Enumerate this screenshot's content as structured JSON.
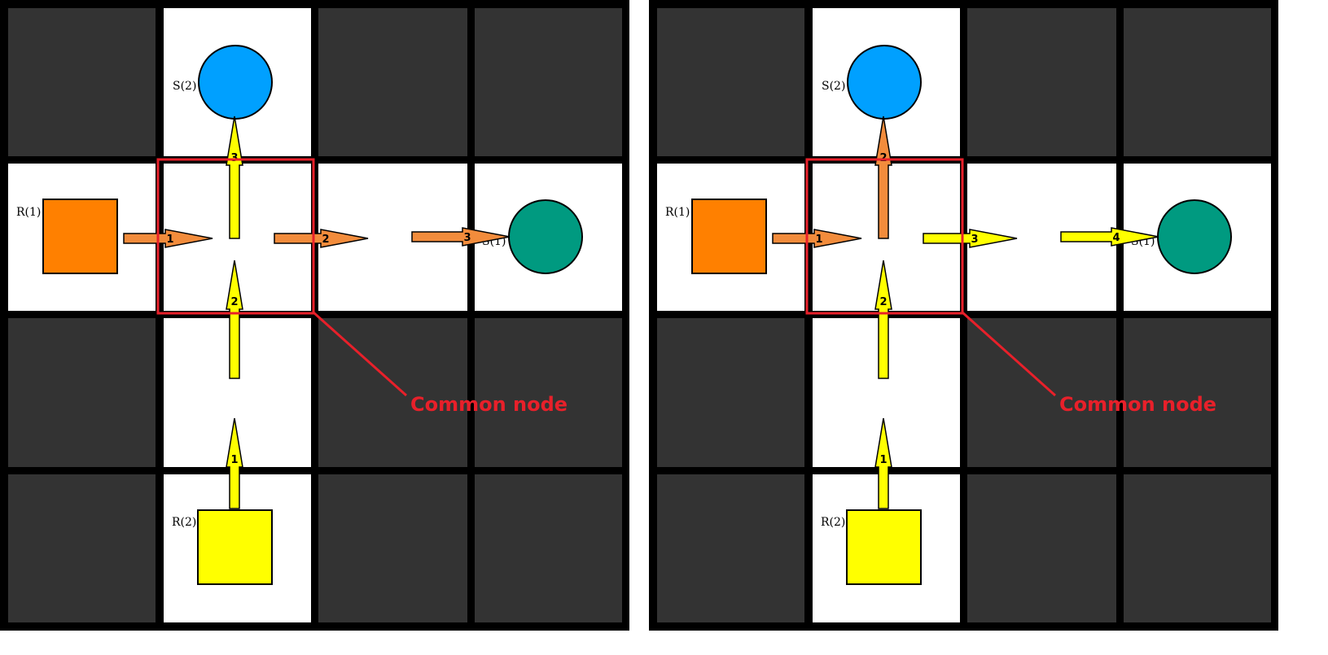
{
  "colors": {
    "frame": "#000000",
    "blocked": "#333333",
    "free": "#ffffff",
    "orange": "#ff8000",
    "orange_arrow": "#f28c3c",
    "yellow": "#ffff00",
    "blue": "#00a0ff",
    "green": "#009a80",
    "highlight": "#e8202a"
  },
  "panels": [
    {
      "labels": {
        "s2": "S(2)",
        "r1": "R(1)",
        "s1": "S(1)",
        "r2": "R(2)",
        "callout": "Common node"
      },
      "arrows": [
        {
          "name": "orange-arrow-1",
          "num": "1",
          "color": "orange"
        },
        {
          "name": "orange-arrow-2",
          "num": "2",
          "color": "orange"
        },
        {
          "name": "orange-arrow-3",
          "num": "3",
          "color": "orange"
        },
        {
          "name": "yellow-arrow-1",
          "num": "1",
          "color": "yellow"
        },
        {
          "name": "yellow-arrow-2",
          "num": "2",
          "color": "yellow"
        },
        {
          "name": "yellow-arrow-3",
          "num": "3",
          "color": "yellow"
        }
      ]
    },
    {
      "labels": {
        "s2": "S(2)",
        "r1": "R(1)",
        "s1": "S(1)",
        "r2": "R(2)",
        "callout": "Common node"
      },
      "arrows": [
        {
          "name": "orange-arrow-1",
          "num": "1",
          "color": "orange"
        },
        {
          "name": "orange-arrow-2",
          "num": "2",
          "color": "orange"
        },
        {
          "name": "yellow-arrow-3",
          "num": "3",
          "color": "yellow"
        },
        {
          "name": "yellow-arrow-4",
          "num": "4",
          "color": "yellow"
        },
        {
          "name": "yellow-arrow-2",
          "num": "2",
          "color": "yellow"
        },
        {
          "name": "yellow-arrow-1",
          "num": "1",
          "color": "yellow"
        }
      ]
    }
  ]
}
